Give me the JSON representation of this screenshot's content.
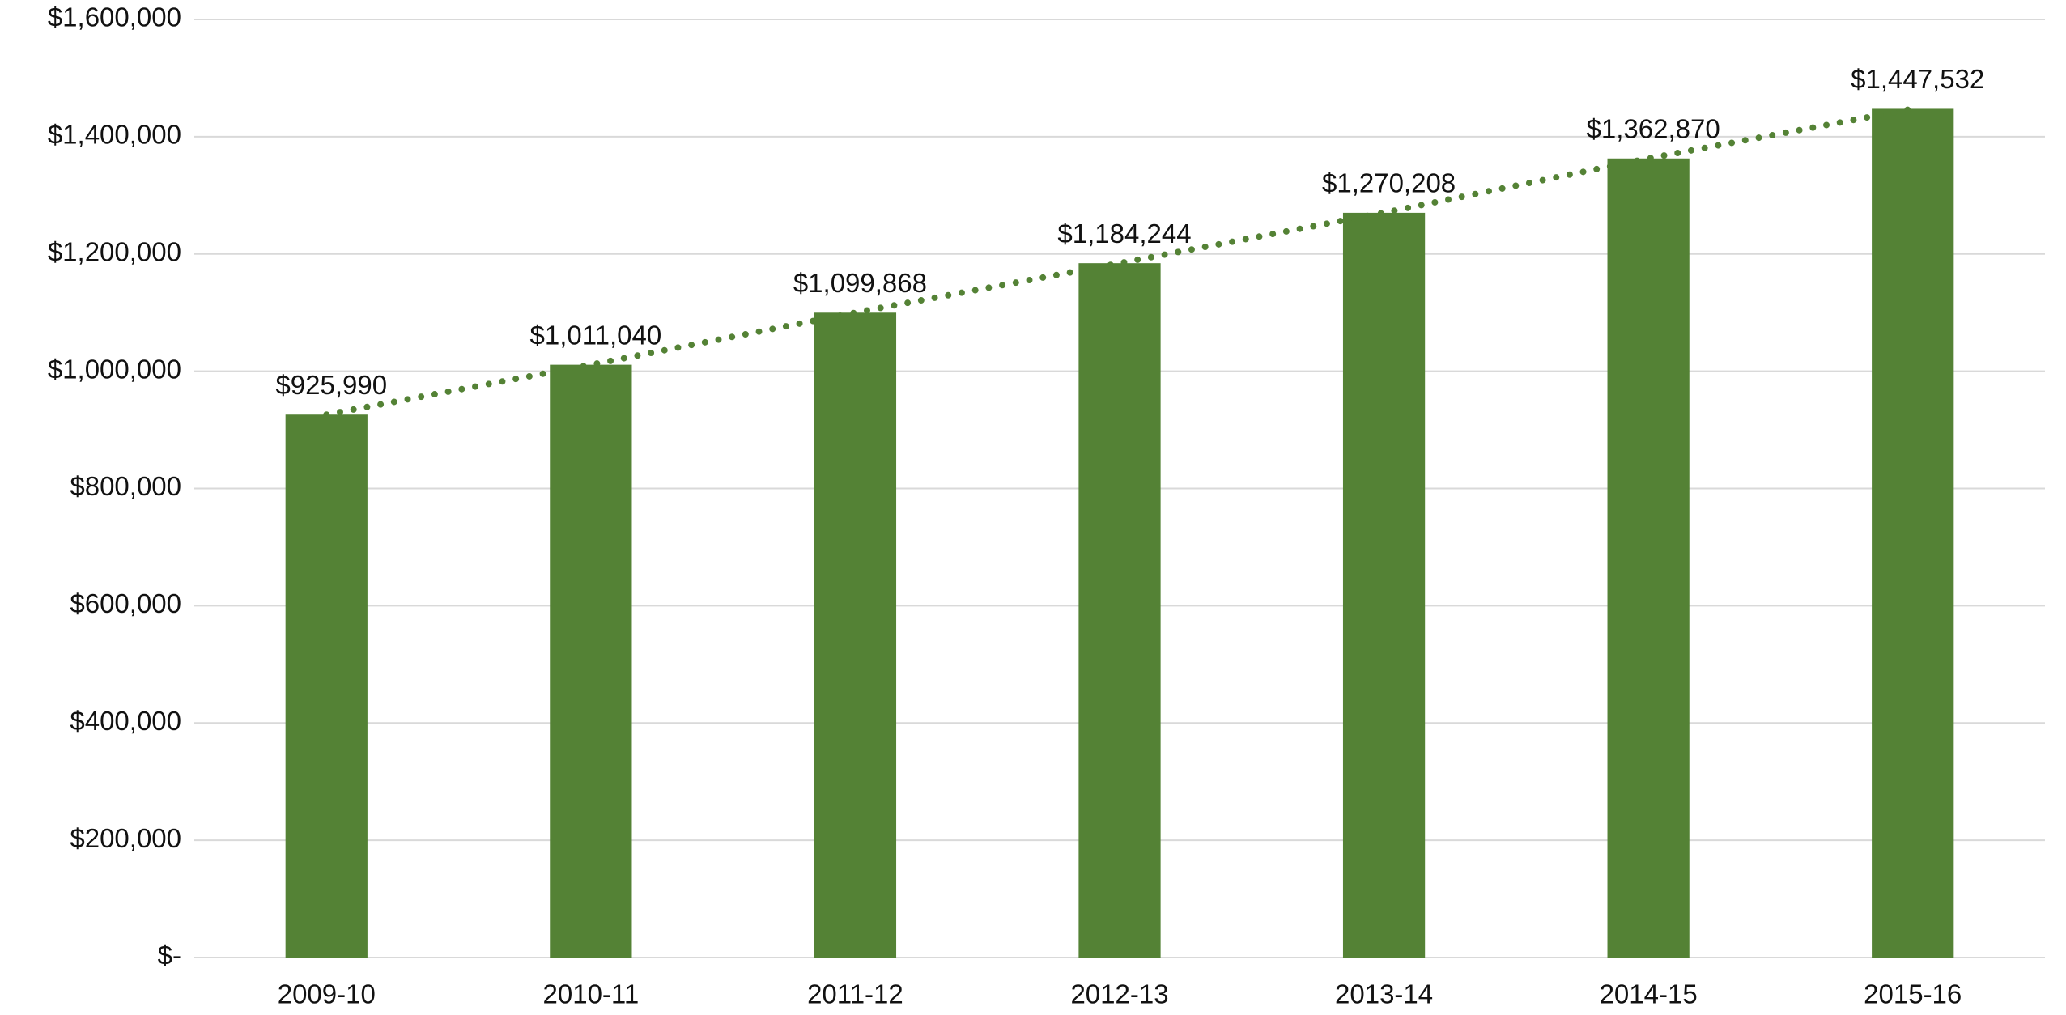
{
  "chart_data": {
    "type": "bar",
    "categories": [
      "2009-10",
      "2010-11",
      "2011-12",
      "2012-13",
      "2013-14",
      "2014-15",
      "2015-16"
    ],
    "values": [
      925990,
      1011040,
      1099868,
      1184244,
      1270208,
      1362870,
      1447532
    ],
    "value_labels": [
      "$925,990",
      "$1,011,040",
      "$1,099,868",
      "$1,184,244",
      "$1,270,208",
      "$1,362,870",
      "$1,447,532"
    ],
    "color": "#548235",
    "trend_line": true,
    "ylim": [
      0,
      1600000
    ],
    "yticks": [
      {
        "value": 0,
        "label": "$-"
      },
      {
        "value": 200000,
        "label": "$200,000"
      },
      {
        "value": 400000,
        "label": "$400,000"
      },
      {
        "value": 600000,
        "label": "$600,000"
      },
      {
        "value": 800000,
        "label": "$800,000"
      },
      {
        "value": 1000000,
        "label": "$1,000,000"
      },
      {
        "value": 1200000,
        "label": "$1,200,000"
      },
      {
        "value": 1400000,
        "label": "$1,400,000"
      },
      {
        "value": 1600000,
        "label": "$1,600,000"
      }
    ],
    "grid": true
  }
}
